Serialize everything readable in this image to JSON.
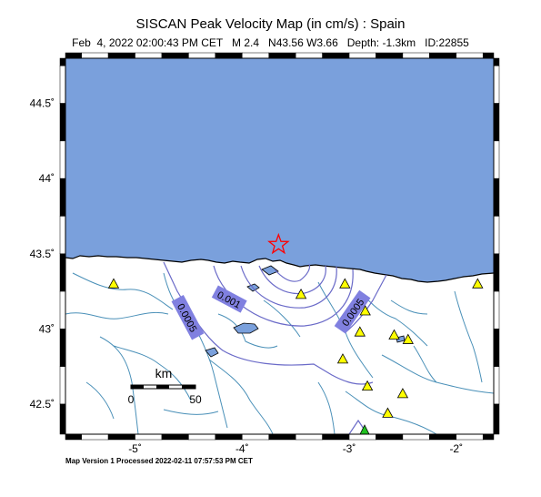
{
  "header": {
    "title": "SISCAN Peak Velocity Map (in cm/s) : Spain",
    "subtitle": "Feb  4, 2022 02:00:43 PM CET   M 2.4   N43.56 W3.66   Depth: -1.3km   ID:22855"
  },
  "footer": {
    "text": "Map Version 1 Processed 2022-02-11 07:57:53 PM CET"
  },
  "axes": {
    "lat_labels": [
      "44.5˚",
      "44˚",
      "43.5˚",
      "43˚",
      "42.5˚"
    ],
    "lon_labels": [
      "-5˚",
      "-4˚",
      "-3˚",
      "-2˚"
    ],
    "lat_values": [
      44.5,
      44.0,
      43.5,
      43.0,
      42.5
    ],
    "lon_values": [
      -5,
      -4,
      -3,
      -2
    ],
    "lat_range": [
      42.3,
      44.8
    ],
    "lon_range": [
      -5.65,
      -1.65
    ]
  },
  "contours": [
    {
      "label": "0.001"
    },
    {
      "label": "0.0005"
    },
    {
      "label": "0.0005"
    }
  ],
  "scale_bar": {
    "unit": "km",
    "start_label": "0",
    "end_label": "50"
  },
  "epicenter": {
    "lat": 43.56,
    "lon": -3.66,
    "symbol": "red-star"
  },
  "stations": [
    {
      "lat": 43.3,
      "lon": -5.2
    },
    {
      "lat": 43.23,
      "lon": -3.45
    },
    {
      "lat": 43.3,
      "lon": -3.04
    },
    {
      "lat": 43.12,
      "lon": -2.85
    },
    {
      "lat": 42.98,
      "lon": -2.9
    },
    {
      "lat": 42.96,
      "lon": -2.58
    },
    {
      "lat": 42.93,
      "lon": -2.45
    },
    {
      "lat": 42.8,
      "lon": -3.06
    },
    {
      "lat": 42.62,
      "lon": -2.83
    },
    {
      "lat": 42.57,
      "lon": -2.5
    },
    {
      "lat": 42.44,
      "lon": -2.64
    },
    {
      "lat": 43.3,
      "lon": -1.8
    }
  ],
  "colors": {
    "sea": "#7aa0dc",
    "land": "#ffffff",
    "rivers": "#4a90b8",
    "contour": "#6a6ac8",
    "contour_label_bg": "#8080e0",
    "station": "#ffff00",
    "epicenter": "#ff0000"
  }
}
